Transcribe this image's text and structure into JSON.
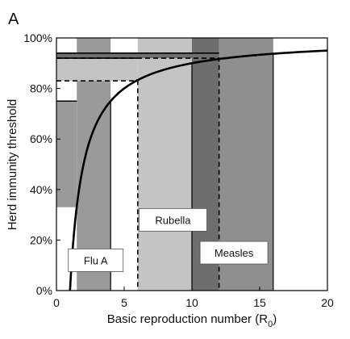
{
  "chart_data": {
    "type": "line",
    "panel_label": "A",
    "xlabel": "Basic reproduction number (R",
    "xlabel_sub": "0",
    "xlabel_close": ")",
    "ylabel": "Herd immunity threshold",
    "xlim": [
      0,
      20
    ],
    "ylim": [
      0,
      100
    ],
    "xticks": [
      0,
      5,
      10,
      15,
      20
    ],
    "yticks": [
      0,
      20,
      40,
      60,
      80,
      100
    ],
    "ytick_labels": [
      "0%",
      "20%",
      "40%",
      "60%",
      "80%",
      "100%"
    ],
    "curve": {
      "formula": "1 - 1/R0",
      "x_start": 1.0,
      "x_end": 20
    },
    "ranges": [
      {
        "name": "Flu A",
        "r0_min": 1.5,
        "r0_max": 4,
        "h_min": 33,
        "h_max": 75,
        "color": "#9a9a9a",
        "label_x": 2.9,
        "label_y": 12
      },
      {
        "name": "Rubella",
        "r0_min": 6,
        "r0_max": 12,
        "h_min": 83,
        "h_max": 92,
        "color": "#c4c4c4",
        "label_x": 8.6,
        "label_y": 28
      },
      {
        "name": "Measles",
        "r0_min": 12,
        "r0_max": 16,
        "h_min": 92,
        "h_max": 94,
        "color": "#8f8f8f",
        "label_x": 13.1,
        "label_y": 15
      }
    ],
    "overlap_band": {
      "r0_min": 10,
      "r0_max": 12,
      "color": "#6e6e6e"
    },
    "grid": false
  }
}
